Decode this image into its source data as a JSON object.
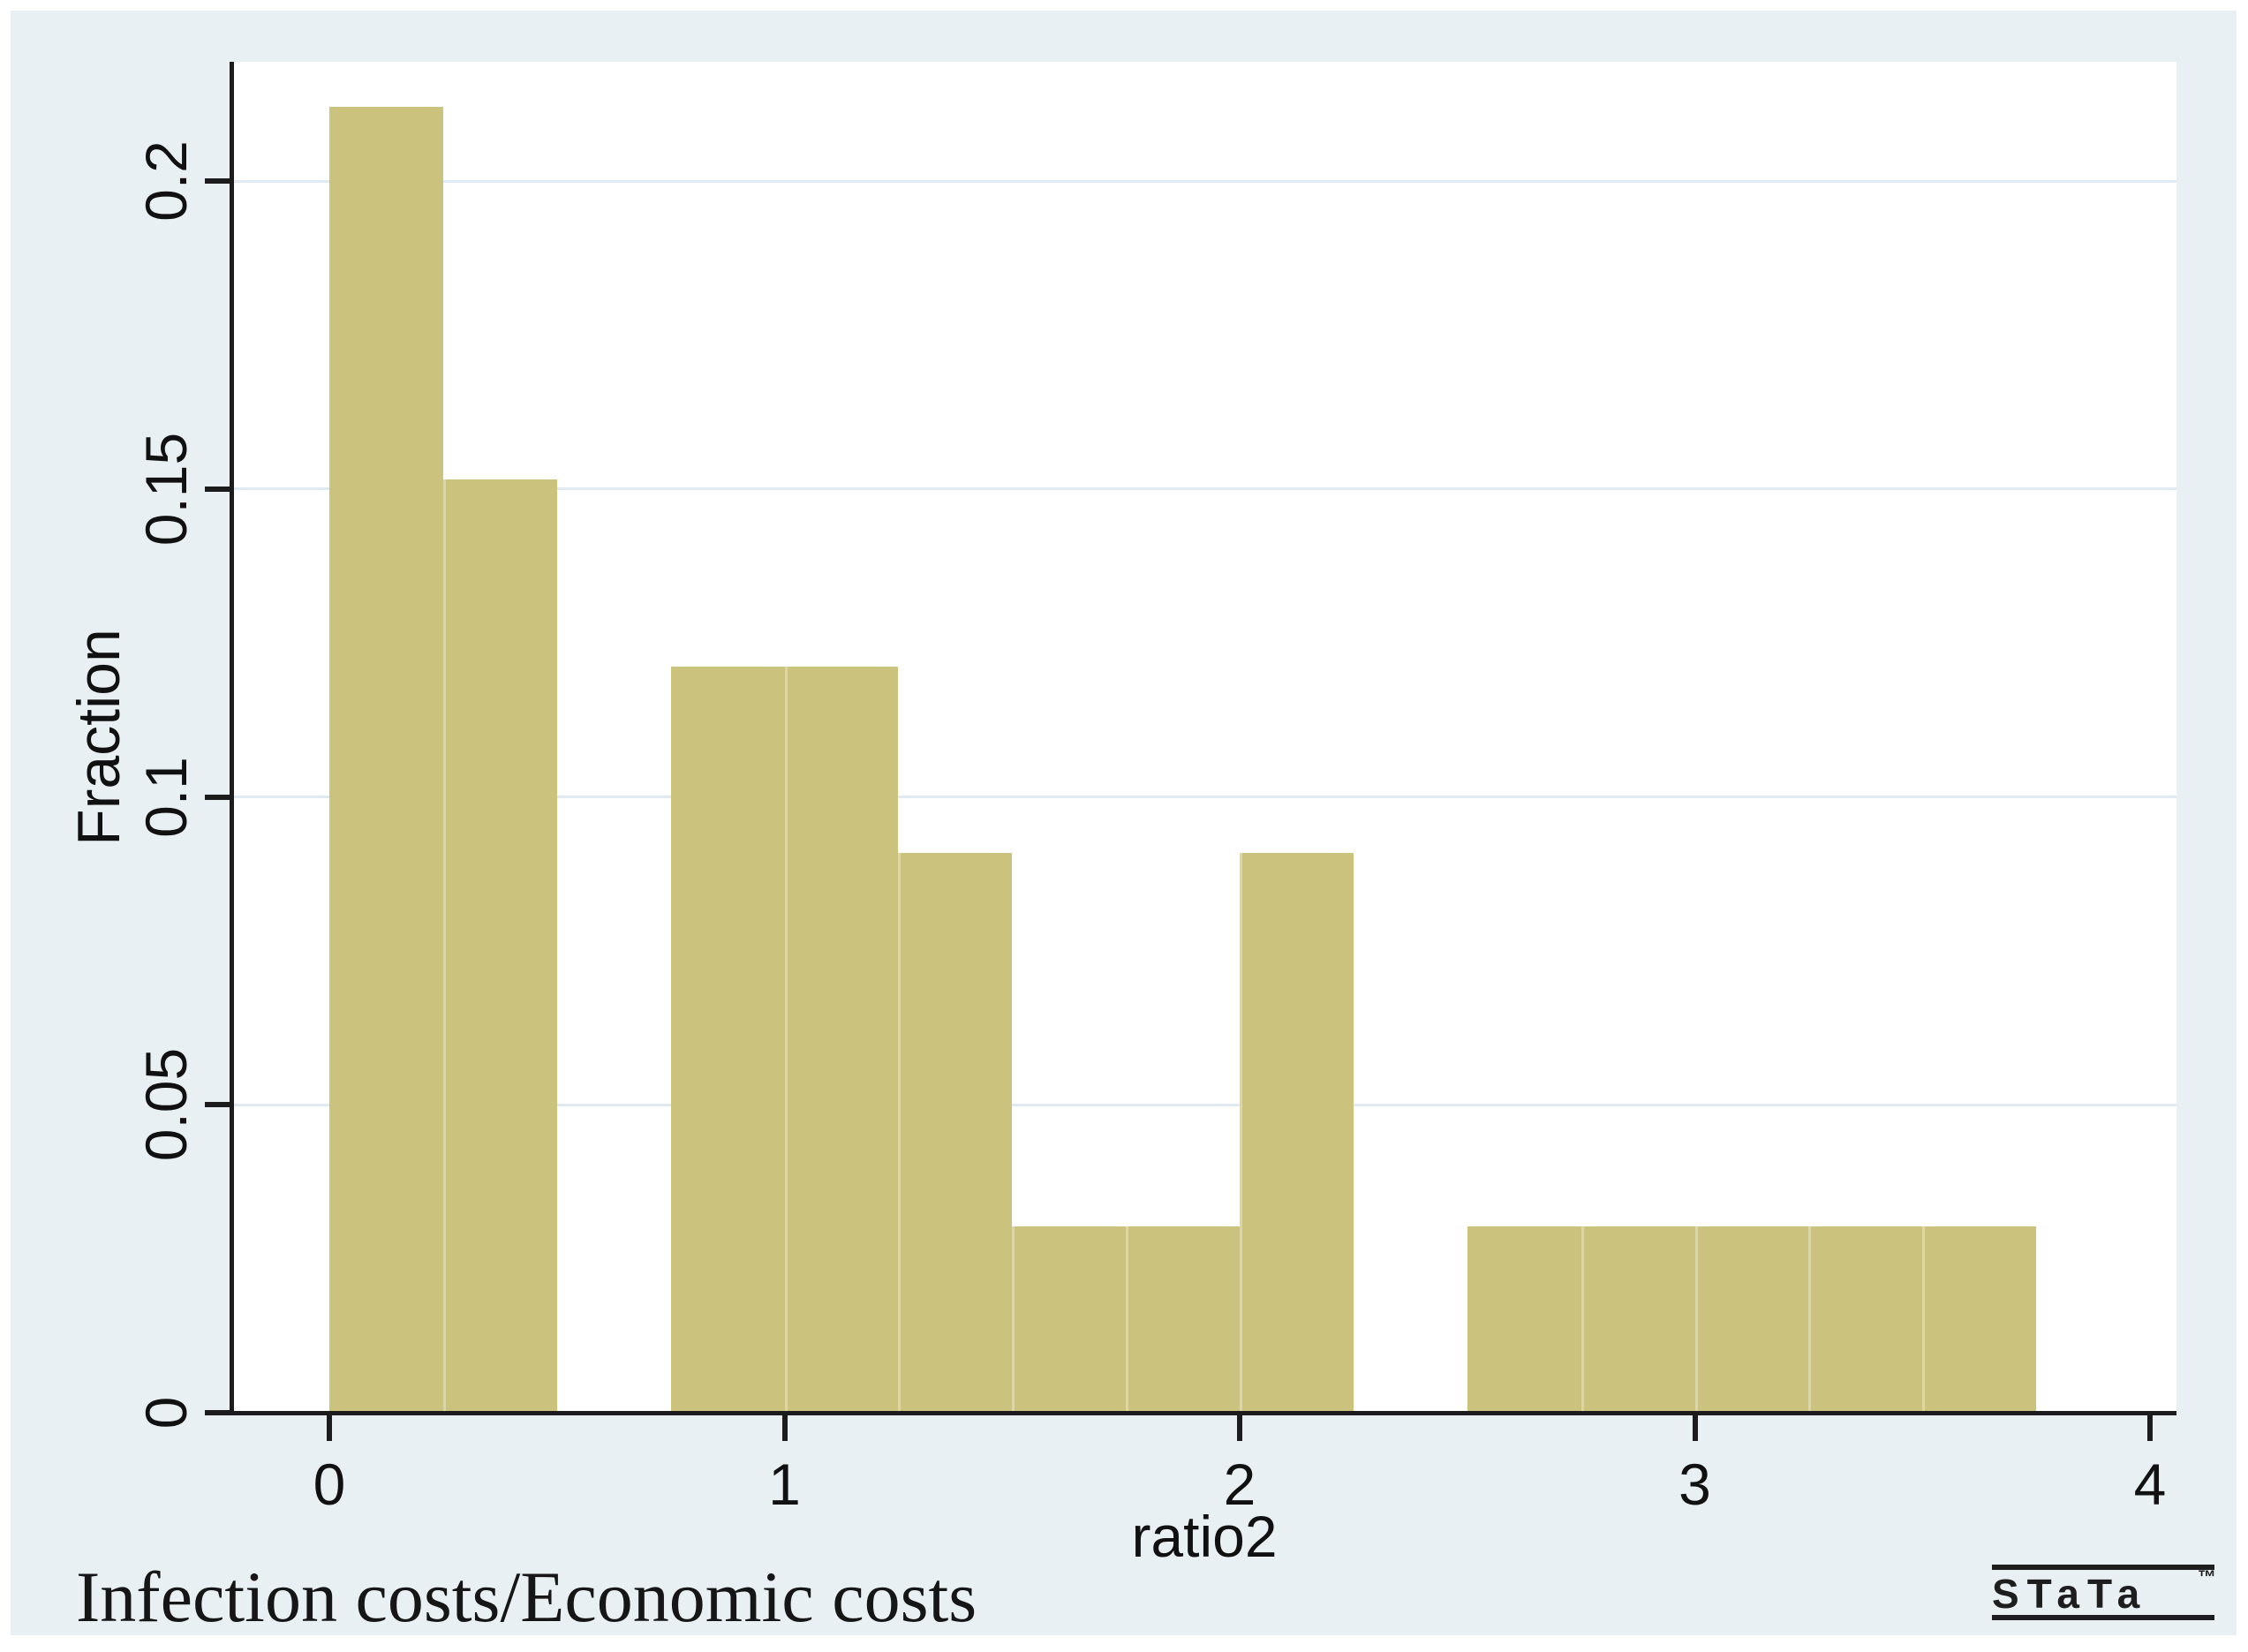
{
  "chart_data": {
    "type": "bar",
    "subtype": "histogram",
    "title": "",
    "xlabel": "ratio2",
    "ylabel": "Fraction",
    "caption": "Infection costs/Economic costs",
    "bin_width": 0.25,
    "bars": [
      {
        "start": 0.0,
        "end": 0.25,
        "fraction": 0.2121
      },
      {
        "start": 0.25,
        "end": 0.5,
        "fraction": 0.1515
      },
      {
        "start": 0.75,
        "end": 1.0,
        "fraction": 0.1212
      },
      {
        "start": 1.0,
        "end": 1.25,
        "fraction": 0.1212
      },
      {
        "start": 1.25,
        "end": 1.5,
        "fraction": 0.0909
      },
      {
        "start": 1.5,
        "end": 1.75,
        "fraction": 0.0303
      },
      {
        "start": 1.75,
        "end": 2.0,
        "fraction": 0.0303
      },
      {
        "start": 2.0,
        "end": 2.25,
        "fraction": 0.0909
      },
      {
        "start": 2.5,
        "end": 2.75,
        "fraction": 0.0303
      },
      {
        "start": 2.75,
        "end": 3.0,
        "fraction": 0.0303
      },
      {
        "start": 3.0,
        "end": 3.25,
        "fraction": 0.0303
      },
      {
        "start": 3.25,
        "end": 3.5,
        "fraction": 0.0303
      },
      {
        "start": 3.5,
        "end": 3.75,
        "fraction": 0.0303
      }
    ],
    "x_ticks": [
      {
        "value": 0,
        "label": "0"
      },
      {
        "value": 1,
        "label": "1"
      },
      {
        "value": 2,
        "label": "2"
      },
      {
        "value": 3,
        "label": "3"
      },
      {
        "value": 4,
        "label": "4"
      }
    ],
    "y_ticks": [
      {
        "value": 0,
        "label": "0"
      },
      {
        "value": 0.05,
        "label": "0.05"
      },
      {
        "value": 0.1,
        "label": "0.1"
      },
      {
        "value": 0.15,
        "label": "0.15"
      },
      {
        "value": 0.2,
        "label": "0.2"
      }
    ],
    "xlim": [
      -0.21,
      4.06
    ],
    "ylim": [
      0,
      0.219
    ],
    "grid": "horizontal gridlines at y ticks",
    "legend_position": "none"
  },
  "branding": {
    "logo_text": "STaTa",
    "trademark": "™"
  },
  "colors": {
    "bar_fill": "#cbc27d",
    "bar_divider": "#dcd6a6",
    "plot_background": "#ffffff",
    "graph_background": "#e9f0f4",
    "gridline": "#dfeaf2",
    "axis": "#1c1c1c",
    "text": "#111111"
  }
}
